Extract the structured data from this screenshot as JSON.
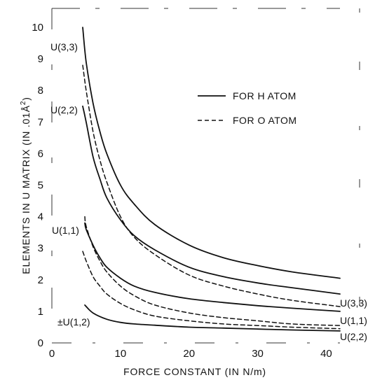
{
  "chart_data": {
    "type": "line",
    "xlabel": "FORCE CONSTANT (IN N/m)",
    "ylabel_main": "ELEMENTS IN U MATRIX (IN .01Å",
    "ylabel_sup": "2",
    "ylabel_close": ")",
    "xlim": [
      0,
      42
    ],
    "ylim": [
      0,
      10.6
    ],
    "x_ticks": [
      0,
      10,
      20,
      30,
      40
    ],
    "y_ticks": [
      0,
      1,
      2,
      3,
      4,
      5,
      6,
      7,
      8,
      9,
      10
    ],
    "grid": false,
    "legend": {
      "placement": "top-right",
      "entries": [
        {
          "label": "FOR H ATOM",
          "style": "solid"
        },
        {
          "label": "FOR O ATOM",
          "style": "dashed"
        }
      ]
    },
    "series": [
      {
        "atom": "H",
        "label": "U(3,3)",
        "style": "solid",
        "x": [
          4.5,
          5,
          6,
          7,
          8,
          10,
          12,
          15,
          20,
          25,
          30,
          35,
          42
        ],
        "y": [
          10.0,
          8.9,
          7.6,
          6.7,
          6.0,
          5.0,
          4.4,
          3.75,
          3.1,
          2.7,
          2.45,
          2.25,
          2.05
        ]
      },
      {
        "atom": "H",
        "label": "U(2,2)",
        "style": "solid",
        "x": [
          4.5,
          5,
          6,
          7,
          8,
          10,
          12,
          15,
          20,
          25,
          30,
          35,
          42
        ],
        "y": [
          7.5,
          7.0,
          5.9,
          5.2,
          4.6,
          3.9,
          3.4,
          2.95,
          2.4,
          2.1,
          1.9,
          1.75,
          1.55
        ]
      },
      {
        "atom": "H",
        "label": "U(1,1)",
        "style": "solid",
        "x": [
          4.8,
          5,
          6,
          7,
          8,
          10,
          12,
          15,
          20,
          25,
          30,
          35,
          42
        ],
        "y": [
          3.8,
          3.6,
          3.1,
          2.7,
          2.4,
          2.05,
          1.8,
          1.6,
          1.4,
          1.28,
          1.18,
          1.1,
          1.0
        ]
      },
      {
        "atom": "H",
        "label": "±U(1,2)",
        "style": "solid",
        "x": [
          4.8,
          6,
          8,
          10,
          12,
          15,
          20,
          25,
          30,
          35,
          42
        ],
        "y": [
          1.2,
          0.95,
          0.75,
          0.65,
          0.6,
          0.56,
          0.5,
          0.47,
          0.44,
          0.41,
          0.38
        ]
      },
      {
        "atom": "O",
        "label": "U(3,3)",
        "style": "dashed",
        "x": [
          4.5,
          5,
          6,
          7,
          8,
          10,
          12,
          15,
          20,
          25,
          30,
          35,
          42
        ],
        "y": [
          8.8,
          8.0,
          6.7,
          5.8,
          5.1,
          4.0,
          3.35,
          2.8,
          2.15,
          1.8,
          1.55,
          1.35,
          1.15
        ]
      },
      {
        "atom": "O",
        "label": "U(1,1)",
        "style": "dashed",
        "x": [
          4.8,
          5,
          6,
          7,
          8,
          10,
          12,
          15,
          20,
          25,
          30,
          35,
          42
        ],
        "y": [
          4.0,
          3.7,
          3.05,
          2.6,
          2.25,
          1.8,
          1.5,
          1.2,
          0.95,
          0.8,
          0.7,
          0.6,
          0.55
        ]
      },
      {
        "atom": "O",
        "label": "U(2,2)",
        "style": "dashed",
        "x": [
          4.5,
          5,
          6,
          7,
          8,
          10,
          12,
          15,
          20,
          25,
          30,
          35,
          42
        ],
        "y": [
          2.9,
          2.6,
          2.1,
          1.8,
          1.55,
          1.25,
          1.05,
          0.85,
          0.7,
          0.6,
          0.55,
          0.5,
          0.45
        ]
      }
    ],
    "curve_labels": {
      "left": [
        "U(3,3)",
        "U(2,2)",
        "U(1,1)",
        "±U(1,2)"
      ],
      "right": [
        "U(3,3)",
        "U(1,1)",
        "U(2,2)"
      ]
    }
  }
}
